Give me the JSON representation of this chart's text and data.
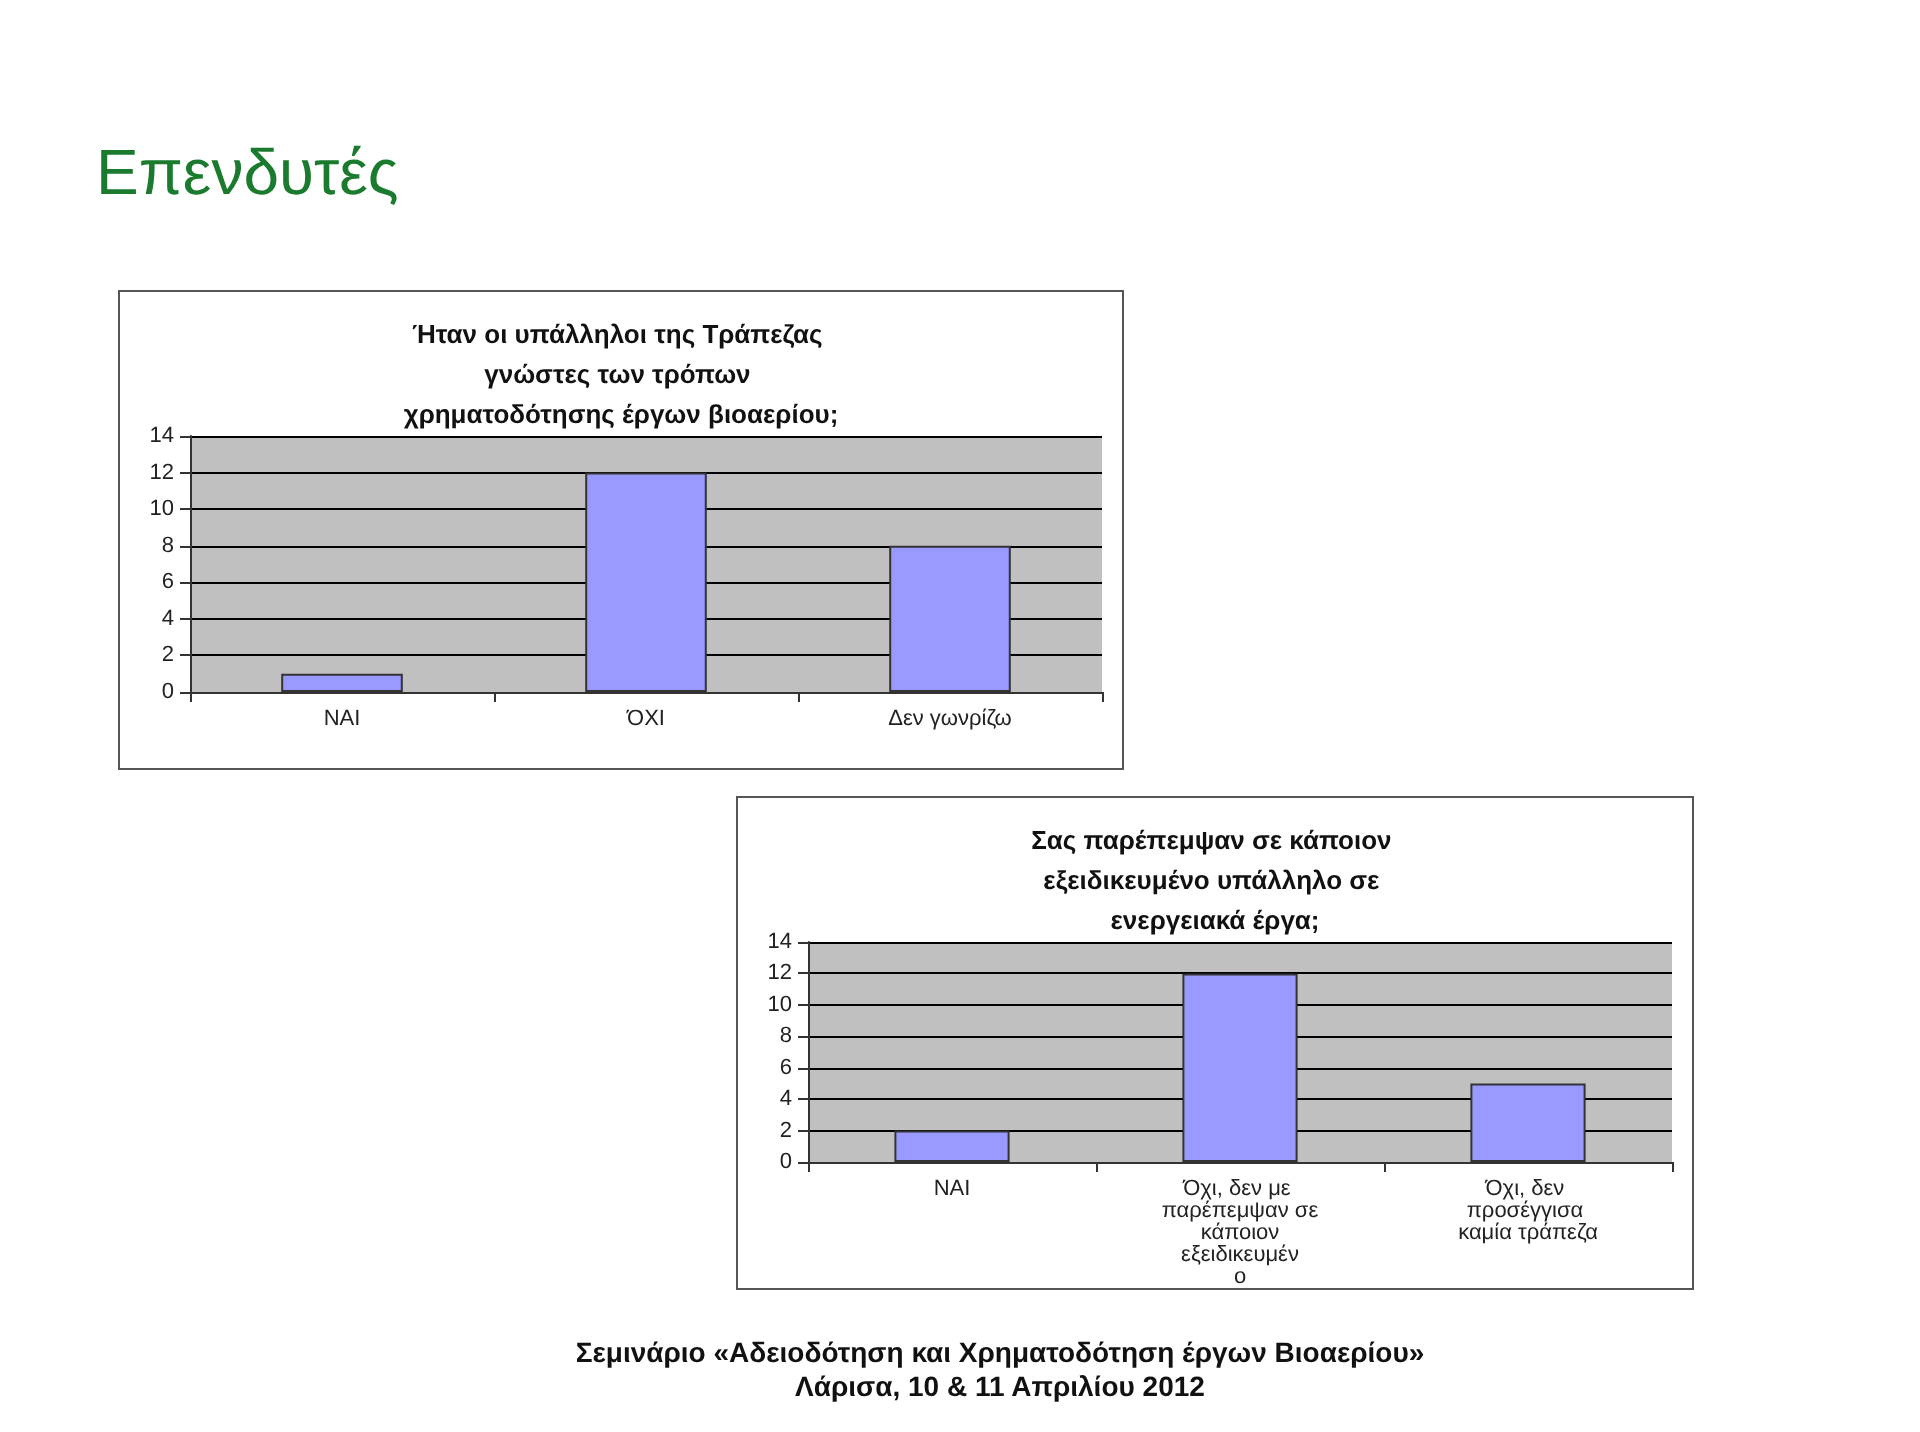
{
  "chart_data": [
    {
      "type": "bar",
      "title": "Ήταν οι υπάλληλοι της Τράπεζας γνώστες των τρόπων χρηματοδότησης έργων βιοαερίου;",
      "annotations": [
        "Επενδυτές"
      ],
      "categories": [
        "NAI",
        "ΌΧΙ",
        "Δεν γωνρίζω"
      ],
      "values": [
        1,
        12,
        8
      ],
      "color": "#9999ff",
      "ylim": [
        0,
        14
      ],
      "yticks": [
        0,
        2,
        4,
        6,
        8,
        10,
        12,
        14
      ],
      "grid": "y"
    },
    {
      "type": "bar",
      "title": "Σας παρέπεμψαν σε κάποιον εξειδικευμένο υπάλληλο σε ενεργειακά έργα;",
      "annotations": [
        "Σεμινάριο «Αδειοδότηση και Χρηματοδότηση έργων Βιοαερίου»",
        "Λάρισα, 10 & 11 Απριλίου 2012"
      ],
      "categories": [
        "NAI",
        "Όχι, δεν με παρέπεμψαν σε κάποιον εξειδικευμένο",
        "Όχι, δεν προσέγγισα καμία τράπεζα"
      ],
      "values": [
        2,
        12,
        5
      ],
      "color": "#9999ff",
      "ylim": [
        0,
        14
      ],
      "yticks": [
        0,
        2,
        4,
        6,
        8,
        10,
        12,
        14
      ],
      "grid": "y"
    }
  ]
}
